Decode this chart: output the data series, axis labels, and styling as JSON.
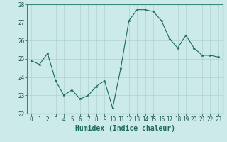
{
  "x": [
    0,
    1,
    2,
    3,
    4,
    5,
    6,
    7,
    8,
    9,
    10,
    11,
    12,
    13,
    14,
    15,
    16,
    17,
    18,
    19,
    20,
    21,
    22,
    23
  ],
  "y": [
    24.9,
    24.7,
    25.3,
    23.8,
    23.0,
    23.3,
    22.8,
    23.0,
    23.5,
    23.8,
    22.3,
    24.5,
    27.1,
    27.7,
    27.7,
    27.6,
    27.1,
    26.1,
    25.6,
    26.3,
    25.6,
    25.2,
    25.2,
    25.1
  ],
  "line_color": "#1a6b5a",
  "marker": "*",
  "marker_size": 2.5,
  "xlabel": "Humidex (Indice chaleur)",
  "ylim": [
    22,
    28
  ],
  "yticks": [
    22,
    23,
    24,
    25,
    26,
    27,
    28
  ],
  "xticks": [
    0,
    1,
    2,
    3,
    4,
    5,
    6,
    7,
    8,
    9,
    10,
    11,
    12,
    13,
    14,
    15,
    16,
    17,
    18,
    19,
    20,
    21,
    22,
    23
  ],
  "bg_color": "#cceae7",
  "grid_color_major": "#aacccc",
  "grid_color_minor": "#ddf0ee",
  "tick_labelsize": 5.5,
  "xlabel_fontsize": 7.0
}
